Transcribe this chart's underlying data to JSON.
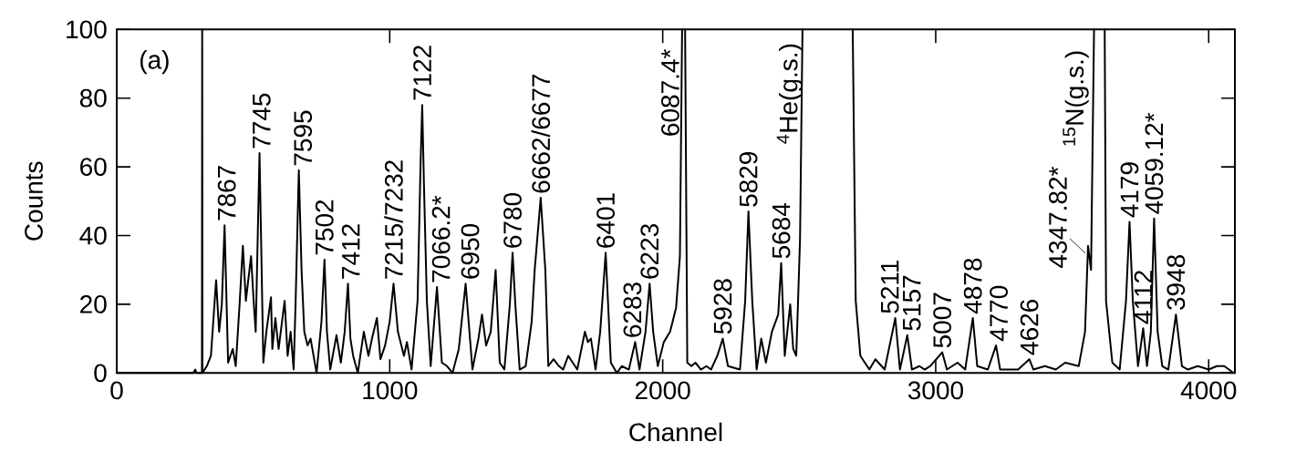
{
  "chart_data": {
    "type": "line",
    "xlabel": "Channel",
    "ylabel": "Counts",
    "color": "#000000",
    "line_style": "solid",
    "xlim": [
      0,
      4096
    ],
    "ylim": [
      0,
      100
    ],
    "xticks": [
      0,
      1000,
      2000,
      3000,
      4000
    ],
    "yticks": [
      0,
      20,
      40,
      60,
      80,
      100
    ],
    "x": [
      0,
      280,
      288,
      292,
      312,
      313,
      314,
      330,
      345,
      364,
      375,
      385,
      395,
      408,
      425,
      436,
      450,
      462,
      473,
      492,
      503,
      509,
      523,
      537,
      548,
      565,
      570,
      581,
      593,
      615,
      626,
      637,
      648,
      655,
      667,
      677,
      687,
      699,
      710,
      732,
      750,
      761,
      770,
      782,
      805,
      821,
      835,
      847,
      856,
      866,
      883,
      905,
      922,
      935,
      953,
      966,
      983,
      1000,
      1014,
      1030,
      1052,
      1063,
      1080,
      1102,
      1113,
      1119,
      1125,
      1136,
      1150,
      1160,
      1173,
      1191,
      1210,
      1230,
      1253,
      1278,
      1303,
      1325,
      1338,
      1353,
      1370,
      1388,
      1403,
      1420,
      1440,
      1450,
      1460,
      1476,
      1498,
      1520,
      1531,
      1553,
      1570,
      1581,
      1600,
      1620,
      1635,
      1654,
      1687,
      1715,
      1726,
      1737,
      1754,
      1771,
      1791,
      1810,
      1832,
      1850,
      1876,
      1899,
      1915,
      1937,
      1952,
      1965,
      1982,
      2004,
      2027,
      2049,
      2063,
      2071,
      2076,
      2082,
      2090,
      2105,
      2120,
      2140,
      2160,
      2177,
      2200,
      2220,
      2239,
      2283,
      2302,
      2314,
      2328,
      2344,
      2361,
      2378,
      2400,
      2423,
      2434,
      2447,
      2467,
      2478,
      2489,
      2495,
      2503,
      2512,
      2600,
      2696,
      2707,
      2724,
      2757,
      2779,
      2813,
      2852,
      2869,
      2896,
      2913,
      2940,
      2960,
      2980,
      3024,
      3041,
      3080,
      3108,
      3136,
      3152,
      3191,
      3221,
      3236,
      3302,
      3343,
      3358,
      3400,
      3440,
      3474,
      3524,
      3547,
      3558,
      3569,
      3580,
      3600,
      3619,
      3624,
      3647,
      3674,
      3697,
      3710,
      3722,
      3741,
      3760,
      3774,
      3788,
      3800,
      3813,
      3830,
      3852,
      3880,
      3902,
      3924,
      3960,
      4000,
      4030,
      4057,
      4091
    ],
    "values": [
      0,
      0,
      1,
      0,
      0,
      100,
      0,
      2,
      5,
      27,
      12,
      20,
      43,
      3,
      7,
      2,
      20,
      37,
      21,
      34,
      19,
      12,
      64,
      3,
      12,
      22,
      7,
      16,
      7,
      21,
      5,
      12,
      1,
      20,
      59,
      30,
      12,
      8,
      10,
      0,
      15,
      33,
      12,
      1,
      11,
      3,
      12,
      26,
      10,
      5,
      0,
      12,
      5,
      10,
      16,
      4,
      8,
      15,
      26,
      12,
      5,
      9,
      1,
      21,
      61,
      78,
      56,
      21,
      2,
      12,
      25,
      3,
      2,
      0,
      7,
      26,
      1,
      10,
      17,
      8,
      12,
      30,
      3,
      1,
      20,
      35,
      20,
      1,
      2,
      15,
      30,
      51,
      30,
      2,
      4,
      2,
      1,
      5,
      1,
      12,
      9,
      10,
      1,
      12,
      35,
      3,
      0,
      2,
      1,
      9,
      1,
      12,
      26,
      12,
      2,
      9,
      12,
      19,
      34,
      100,
      null,
      100,
      3,
      2,
      3,
      1,
      2,
      1,
      5,
      10,
      2,
      1,
      21,
      47,
      21,
      1,
      10,
      3,
      12,
      17,
      32,
      5,
      20,
      7,
      5,
      19,
      39,
      100,
      null,
      100,
      21,
      5,
      1,
      4,
      1,
      16,
      1,
      11,
      1,
      2,
      1,
      2,
      6,
      1,
      3,
      1,
      16,
      2,
      1,
      8,
      1,
      1,
      4,
      1,
      2,
      1,
      3,
      2,
      12,
      37,
      30,
      100,
      null,
      100,
      21,
      3,
      1,
      21,
      44,
      21,
      2,
      13,
      2,
      12,
      45,
      12,
      2,
      1,
      17,
      2,
      1,
      2,
      1,
      2,
      2,
      0
    ],
    "annotations": [
      "(a)",
      {
        "text": "7867",
        "x": 395,
        "y": 43
      },
      {
        "text": "7745",
        "x": 523,
        "y": 64
      },
      {
        "text": "7595",
        "x": 667,
        "y": 59
      },
      {
        "text": "7502",
        "x": 761,
        "y": 33
      },
      {
        "text": "7412",
        "x": 847,
        "y": 26
      },
      {
        "text": "7215/7232",
        "x": 1014,
        "y": 26
      },
      {
        "text": "7122",
        "x": 1119,
        "y": 78
      },
      {
        "text": "7066.2*",
        "x": 1173,
        "y": 25
      },
      {
        "text": "6950",
        "x": 1278,
        "y": 26
      },
      {
        "text": "6780",
        "x": 1450,
        "y": 35
      },
      {
        "text": "6662/6677",
        "x": 1553,
        "y": 51
      },
      {
        "text": "6401",
        "x": 1791,
        "y": 35
      },
      {
        "text": "6283",
        "x": 1899,
        "y": 9
      },
      {
        "text": "6223",
        "x": 1952,
        "y": 26
      },
      {
        "text": "6087.4*",
        "x": 2071,
        "y": 100
      },
      {
        "text": "5928",
        "x": 2220,
        "y": 10
      },
      {
        "text": "5829",
        "x": 2314,
        "y": 47
      },
      {
        "text": "5684",
        "x": 2434,
        "y": 32
      },
      {
        "text": "$^{4}$He(g.s.)",
        "x": 2512,
        "y": 100
      },
      {
        "text": "5211",
        "x": 2852,
        "y": 16
      },
      {
        "text": "5157",
        "x": 2896,
        "y": 11
      },
      {
        "text": "5007",
        "x": 3024,
        "y": 6
      },
      {
        "text": "4878",
        "x": 3136,
        "y": 16
      },
      {
        "text": "4770",
        "x": 3221,
        "y": 8
      },
      {
        "text": "4626",
        "x": 3343,
        "y": 4
      },
      {
        "text": "4347.82*",
        "x": 3558,
        "y": 37
      },
      {
        "text": "$^{15}$N(g.s.)",
        "x": 3580,
        "y": 100
      },
      {
        "text": "4179",
        "x": 3710,
        "y": 44
      },
      {
        "text": "4112",
        "x": 3760,
        "y": 13
      },
      {
        "text": "4059.12*",
        "x": 3800,
        "y": 45
      },
      {
        "text": "3948",
        "x": 3880,
        "y": 17
      }
    ]
  }
}
